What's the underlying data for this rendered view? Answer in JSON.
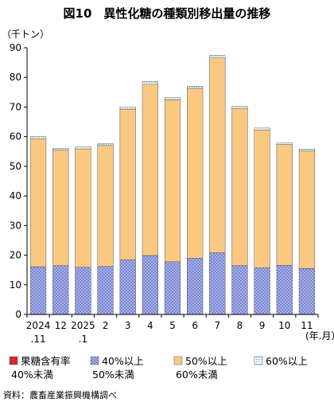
{
  "chart_data": {
    "type": "bar",
    "stacked": true,
    "title": "図10　異性化糖の種類別移出量の推移",
    "ylabel": "（千トン）",
    "xlabel": "(年.月）",
    "ylim": [
      0,
      90
    ],
    "yticks": [
      0,
      10,
      20,
      30,
      40,
      50,
      60,
      70,
      80,
      90
    ],
    "categories": [
      {
        "line1": "2024",
        "line2": ".11"
      },
      {
        "line1": "12",
        "line2": ""
      },
      {
        "line1": "2025",
        "line2": ".1"
      },
      {
        "line1": "2",
        "line2": ""
      },
      {
        "line1": "3",
        "line2": ""
      },
      {
        "line1": "4",
        "line2": ""
      },
      {
        "line1": "5",
        "line2": ""
      },
      {
        "line1": "6",
        "line2": ""
      },
      {
        "line1": "7",
        "line2": ""
      },
      {
        "line1": "8",
        "line2": ""
      },
      {
        "line1": "9",
        "line2": ""
      },
      {
        "line1": "10",
        "line2": ""
      },
      {
        "line1": "11",
        "line2": ""
      }
    ],
    "series": [
      {
        "name": "果糖含有率\n40%未満",
        "color": "#d62728",
        "values": [
          0,
          0,
          0,
          0,
          0,
          0,
          0,
          0,
          0,
          0,
          0,
          0,
          0
        ]
      },
      {
        "name": "40%以上\n50%未満",
        "color": "#7b86d6",
        "values": [
          16.1,
          16.5,
          15.9,
          16.2,
          18.5,
          19.9,
          17.8,
          19.0,
          20.8,
          16.5,
          15.8,
          16.6,
          15.5
        ]
      },
      {
        "name": "50%以上\n60%未満",
        "color": "#f9c981",
        "values": [
          43.2,
          38.9,
          40.0,
          40.8,
          50.8,
          57.8,
          54.7,
          57.3,
          65.8,
          53.1,
          46.5,
          40.7,
          39.7
        ]
      },
      {
        "name": "60%以上",
        "color": "#a8dde6",
        "values": [
          0.7,
          0.6,
          0.6,
          0.6,
          0.7,
          0.9,
          0.7,
          0.7,
          0.8,
          0.6,
          0.6,
          0.6,
          0.6
        ]
      }
    ],
    "grid": false,
    "legend_position": "bottom"
  },
  "source": "資料：農畜産業振興機構調べ"
}
